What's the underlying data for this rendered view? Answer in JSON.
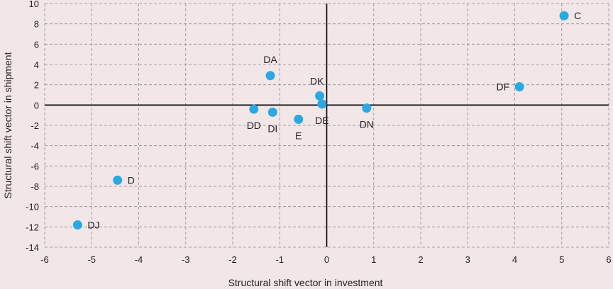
{
  "chart_data": {
    "type": "scatter",
    "xlabel": "Structural shift vector in investment",
    "ylabel": "Structural shift vector in shipment",
    "xlim": [
      -6,
      6
    ],
    "ylim": [
      -14,
      10
    ],
    "x_ticks": [
      -6,
      -5,
      -4,
      -3,
      -2,
      -1,
      0,
      1,
      2,
      3,
      4,
      5,
      6
    ],
    "y_ticks": [
      -14,
      -12,
      -10,
      -8,
      -6,
      -4,
      -2,
      0,
      2,
      4,
      6,
      8,
      10
    ],
    "grid": true,
    "point_color": "#29a9e1",
    "points": [
      {
        "label": "C",
        "x": 5.05,
        "y": 8.8,
        "label_pos": "right"
      },
      {
        "label": "DF",
        "x": 4.1,
        "y": 1.8,
        "label_pos": "left"
      },
      {
        "label": "DA",
        "x": -1.2,
        "y": 2.9,
        "label_pos": "above"
      },
      {
        "label": "DK",
        "x": -0.15,
        "y": 0.9,
        "label_pos": "above-left"
      },
      {
        "label": "DE",
        "x": -0.1,
        "y": 0.1,
        "label_pos": "below"
      },
      {
        "label": "DN",
        "x": 0.85,
        "y": -0.3,
        "label_pos": "below"
      },
      {
        "label": "DD",
        "x": -1.55,
        "y": -0.4,
        "label_pos": "below"
      },
      {
        "label": "DI",
        "x": -1.15,
        "y": -0.7,
        "label_pos": "below"
      },
      {
        "label": "E",
        "x": -0.6,
        "y": -1.4,
        "label_pos": "below"
      },
      {
        "label": "D",
        "x": -4.45,
        "y": -7.4,
        "label_pos": "right"
      },
      {
        "label": "DJ",
        "x": -5.3,
        "y": -11.8,
        "label_pos": "right"
      }
    ]
  }
}
